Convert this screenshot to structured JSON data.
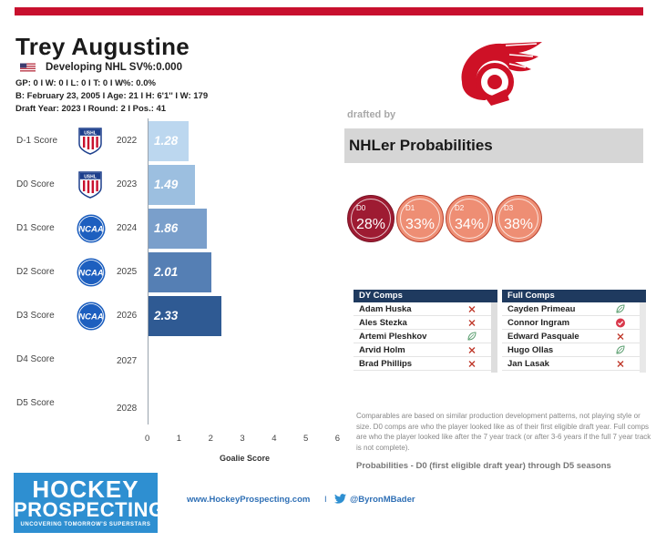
{
  "header": {
    "accent_color": "#c8102e"
  },
  "player": {
    "name": "Trey Augustine",
    "country_flag": "us-flag-icon",
    "status": "Developing  NHL SV%:0.000",
    "stats_line": "GP: 0 I W: 0 I L: 0  I T: 0  I W%: 0.0%",
    "bio_line": "B: February 23, 2005 I  Age: 21 I H: 6'1'' I W: 179",
    "draft_line": "Draft Year: 2023 I Round: 2 I Pos.: 41"
  },
  "team": {
    "logo": "detroit-red-wings-logo",
    "drafted_by": "drafted by"
  },
  "chart_data": {
    "type": "bar",
    "orientation": "horizontal",
    "title": "",
    "xlabel": "Goalie Score",
    "xlim": [
      0,
      6
    ],
    "xticks": [
      "0",
      "1",
      "2",
      "3",
      "4",
      "5",
      "6"
    ],
    "rows": [
      {
        "label": "D-1 Score",
        "year": "2022",
        "league": "ushl-icon",
        "value": 1.28,
        "display": "1.28",
        "color": "#bcd7ef"
      },
      {
        "label": "D0 Score",
        "year": "2023",
        "league": "ushl-icon",
        "value": 1.49,
        "display": "1.49",
        "color": "#9cbfe0"
      },
      {
        "label": "D1 Score",
        "year": "2024",
        "league": "ncaa-icon",
        "value": 1.86,
        "display": "1.86",
        "color": "#7a9fcb"
      },
      {
        "label": "D2  Score",
        "year": "2025",
        "league": "ncaa-icon",
        "value": 2.01,
        "display": "2.01",
        "color": "#557fb4"
      },
      {
        "label": "D3 Score",
        "year": "2026",
        "league": "ncaa-icon",
        "value": 2.33,
        "display": "2.33",
        "color": "#2f5a93"
      },
      {
        "label": "D4  Score",
        "year": "2027",
        "league": "",
        "value": 0,
        "display": "",
        "color": "#2f5a93"
      },
      {
        "label": "D5 Score",
        "year": "2028",
        "league": "",
        "value": 0,
        "display": "",
        "color": "#2f5a93"
      }
    ]
  },
  "probabilities": {
    "title": "NHLer Probabilities",
    "items": [
      {
        "label": "D0",
        "value": "28%"
      },
      {
        "label": "D1",
        "value": "33%"
      },
      {
        "label": "D2",
        "value": "34%"
      },
      {
        "label": "D3",
        "value": "38%"
      }
    ]
  },
  "dy_comps": {
    "title": "DY Comps",
    "rows": [
      {
        "name": "Adam Huska",
        "mark": "x"
      },
      {
        "name": "Ales Stezka",
        "mark": "x"
      },
      {
        "name": "Artemi Pleshkov",
        "mark": "leaf"
      },
      {
        "name": "Arvid Holm",
        "mark": "x"
      },
      {
        "name": "Brad Phillips",
        "mark": "x"
      }
    ]
  },
  "full_comps": {
    "title": "Full Comps",
    "rows": [
      {
        "name": "Cayden Primeau",
        "mark": "leaf"
      },
      {
        "name": "Connor Ingram",
        "mark": "check"
      },
      {
        "name": "Edward Pasquale",
        "mark": "x"
      },
      {
        "name": "Hugo Ollas",
        "mark": "leaf"
      },
      {
        "name": "Jan Lasak",
        "mark": "x"
      }
    ]
  },
  "notes": {
    "comparables": "Comparables are based on similar production development patterns, not playing style or size. D0 comps are who the player looked like as of their first eligible draft year. Full comps are who the player looked like after the 7 year track (or after 3-6 years if the full 7 year track is not complete).",
    "probabilities": "Probabilities - D0 (first eligible draft year) through D5 seasons"
  },
  "footer": {
    "brand_line1": "HOCKEY",
    "brand_line2": "PROSPECTING",
    "brand_tagline": "UNCOVERING TOMORROW'S SUPERSTARS",
    "website": "www.HockeyProspecting.com",
    "separator": "I",
    "twitter": "@ByronMBader"
  }
}
